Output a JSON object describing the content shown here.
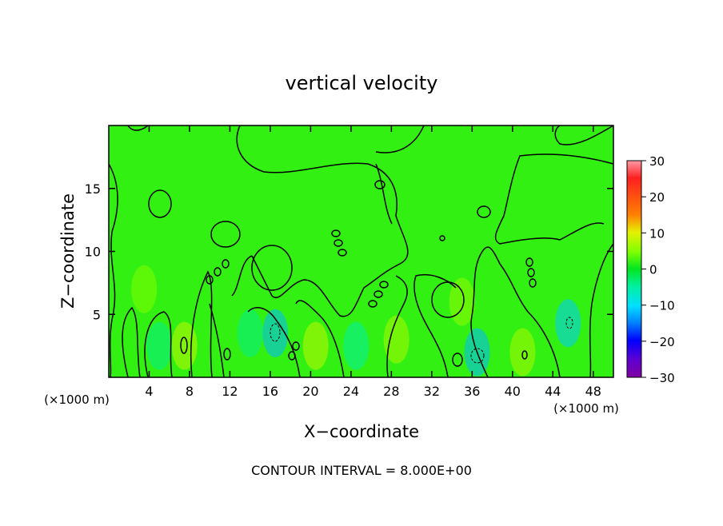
{
  "chart_data": {
    "type": "heatmap",
    "title": "vertical velocity",
    "xlabel": "X−coordinate",
    "ylabel": "Z−coordinate",
    "x_unit": "(×1000 m)",
    "x_unit_right": "(×1000 m)",
    "footer": "CONTOUR INTERVAL = 8.000E+00",
    "xlim": [
      0,
      50
    ],
    "ylim": [
      0,
      20
    ],
    "x_ticks": [
      4,
      8,
      12,
      16,
      20,
      24,
      28,
      32,
      36,
      40,
      44,
      48
    ],
    "y_ticks": [
      5,
      10,
      15
    ],
    "colorbar": {
      "min": -30,
      "max": 30,
      "ticks": [
        "30",
        "20",
        "10",
        "0",
        "−10",
        "−20",
        "−30"
      ]
    },
    "contour_interval": 8.0,
    "background_value": 2,
    "anomalies": [
      {
        "x": 16.5,
        "z": 3.5,
        "value": -12
      },
      {
        "x": 36.5,
        "z": 2.0,
        "value": -12
      },
      {
        "x": 45.5,
        "z": 4.3,
        "value": -11
      },
      {
        "x": 24.5,
        "z": 2.5,
        "value": -5
      },
      {
        "x": 14.0,
        "z": 3.5,
        "value": -4
      },
      {
        "x": 5.0,
        "z": 2.5,
        "value": -4
      },
      {
        "x": 7.5,
        "z": 2.5,
        "value": 8
      },
      {
        "x": 20.5,
        "z": 2.5,
        "value": 8
      },
      {
        "x": 28.5,
        "z": 3.0,
        "value": 7
      },
      {
        "x": 41.0,
        "z": 2.0,
        "value": 7
      },
      {
        "x": 35.0,
        "z": 6.0,
        "value": 6
      },
      {
        "x": 3.5,
        "z": 7.0,
        "value": 5
      }
    ]
  }
}
